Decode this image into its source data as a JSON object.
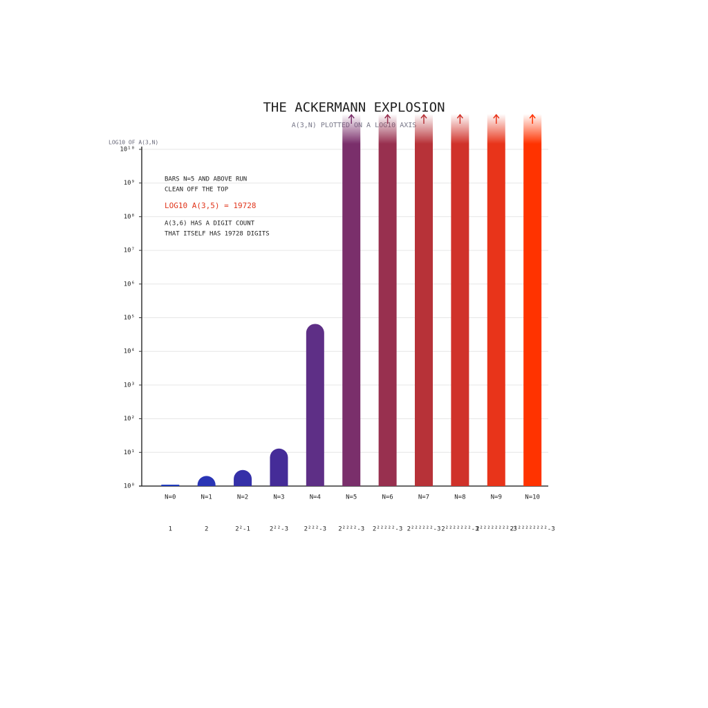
{
  "chart_data": {
    "type": "bar",
    "title": "THE ACKERMANN EXPLOSION",
    "subtitle": "A(3,N) PLOTTED ON A LOG10 AXIS",
    "y_label": "LOG10 OF A(3,N)",
    "log_scale": true,
    "grid": true,
    "categories": [
      "N=0",
      "N=1",
      "N=2",
      "N=3",
      "N=4",
      "N=5",
      "N=6",
      "N=7",
      "N=8",
      "N=9",
      "N=10"
    ],
    "values": [
      1,
      2,
      3,
      13,
      65533,
      null,
      null,
      null,
      null,
      null,
      null
    ],
    "value_labels": [
      "1",
      "2",
      "2²-1",
      "2²²-3",
      "2²²²-3",
      "2²²²²-3",
      "2²²²²²-3",
      "2²²²²²²-3",
      "2²²²²²²²-3",
      "2²²²²²²²²-3",
      "2²²²²²²²²²-3"
    ],
    "colors": [
      "#1f3bbf",
      "#2a35b5",
      "#3530a8",
      "#452c98",
      "#5e2f86",
      "#7a2f6b",
      "#98304f",
      "#b73238",
      "#d0322a",
      "#e8341a",
      "#ff3300"
    ],
    "ylim": [
      1,
      10000000000
    ],
    "yticks": [
      {
        "value": 1,
        "label": "10⁰"
      },
      {
        "value": 10,
        "label": "10¹"
      },
      {
        "value": 100,
        "label": "10²"
      },
      {
        "value": 1000,
        "label": "10³"
      },
      {
        "value": 10000,
        "label": "10⁴"
      },
      {
        "value": 100000,
        "label": "10⁵"
      },
      {
        "value": 1000000,
        "label": "10⁶"
      },
      {
        "value": 10000000,
        "label": "10⁷"
      },
      {
        "value": 100000000,
        "label": "10⁸"
      },
      {
        "value": 1000000000,
        "label": "10⁹"
      },
      {
        "value": 10000000000,
        "label": "10¹⁰"
      }
    ],
    "annotations": [
      "BARS N=5 AND ABOVE RUN",
      "CLEAN OFF THE TOP",
      "LOG10 A(3,5) = 19728",
      "A(3,6) HAS A DIGIT COUNT",
      "THAT ITSELF HAS 19728 DIGITS"
    ]
  }
}
